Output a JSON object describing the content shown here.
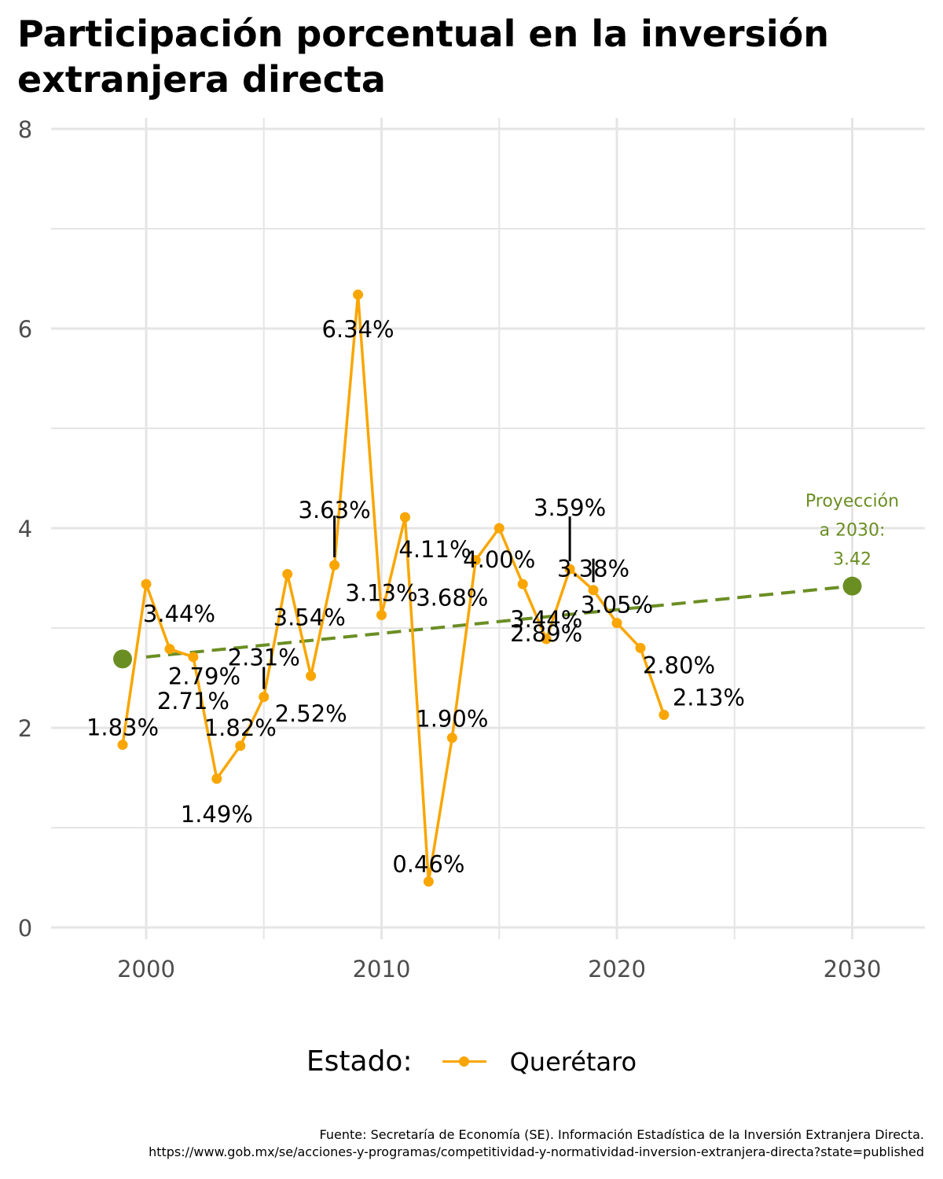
{
  "title": "Participación porcentual en la inversión extranjera directa",
  "legend": {
    "title": "Estado:",
    "label": "Querétaro"
  },
  "caption": {
    "line1": "Fuente: Secretaría de Economía (SE). Información Estadística de la Inversión Extranjera Directa.",
    "line2": "https://www.gob.mx/se/acciones-y-programas/competitividad-y-normatividad-inversion-extranjera-directa?state=published"
  },
  "colors": {
    "series": "#f9a602",
    "projection": "#6b8e23",
    "grid": "#e5e5e5",
    "text": "#000000",
    "axis_text": "#4d4d4d"
  },
  "chart_data": {
    "type": "line",
    "x_ticks": [
      2000,
      2010,
      2020,
      2030
    ],
    "y_ticks": [
      0,
      2,
      4,
      6,
      8
    ],
    "xlim": [
      1996,
      2033
    ],
    "ylim": [
      0,
      8
    ],
    "grid": true,
    "legend_position": "bottom",
    "series": [
      {
        "name": "Querétaro",
        "x": [
          1999,
          2000,
          2001,
          2002,
          2003,
          2004,
          2005,
          2006,
          2007,
          2008,
          2009,
          2010,
          2011,
          2012,
          2013,
          2014,
          2015,
          2016,
          2017,
          2018,
          2019,
          2020,
          2021,
          2022
        ],
        "y": [
          1.83,
          3.44,
          2.79,
          2.71,
          1.49,
          1.82,
          2.31,
          3.54,
          2.52,
          3.63,
          6.34,
          3.13,
          4.11,
          0.46,
          1.9,
          3.68,
          4.0,
          3.44,
          2.89,
          3.59,
          3.38,
          3.05,
          2.8,
          2.13
        ],
        "labels": [
          "1.83%",
          "3.44%",
          "2.79%",
          "2.71%",
          "1.49%",
          "1.82%",
          "2.31%",
          "3.54%",
          "2.52%",
          "3.63%",
          "6.34%",
          "3.13%",
          "4.11%",
          "0.46%",
          "1.90%",
          "3.68%",
          "4.00%",
          "3.44%",
          "2.89%",
          "3.59%",
          "3.38%",
          "3.05%",
          "2.80%",
          "2.13%"
        ]
      }
    ],
    "trend": {
      "x": [
        2000,
        2030
      ],
      "y": [
        2.71,
        3.42
      ],
      "style": "dashed"
    },
    "projection_points": [
      {
        "x": 1999,
        "y": 2.69
      },
      {
        "x": 2030,
        "y": 3.42
      }
    ],
    "projection_label": [
      "Proyección",
      "a 2030:",
      "3.42"
    ]
  }
}
